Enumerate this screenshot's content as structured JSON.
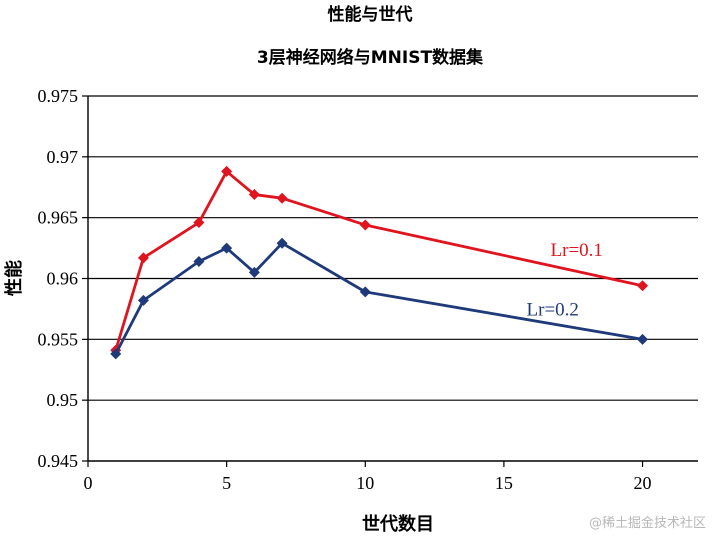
{
  "chart_data": {
    "type": "line",
    "title": "性能与世代",
    "subtitle": "3层神经网络与MNIST数据集",
    "xlabel": "世代数目",
    "ylabel": "性能",
    "xlim": [
      0,
      22
    ],
    "ylim": [
      0.945,
      0.975
    ],
    "xticks": [
      0,
      5,
      10,
      15,
      20
    ],
    "yticks": [
      0.945,
      0.95,
      0.955,
      0.96,
      0.965,
      0.97,
      0.975
    ],
    "ytick_labels": [
      "0.945",
      "0.95",
      "0.955",
      "0.96",
      "0.965",
      "0.97",
      "0.975"
    ],
    "grid": "horizontal",
    "series": [
      {
        "name": "Lr=0.1",
        "color": "#e0141e",
        "x": [
          1,
          2,
          4,
          5,
          6,
          7,
          10,
          20
        ],
        "y": [
          0.9541,
          0.9617,
          0.9646,
          0.9688,
          0.9669,
          0.9666,
          0.9644,
          0.9594
        ]
      },
      {
        "name": "Lr=0.2",
        "color": "#1f3a7a",
        "x": [
          1,
          2,
          4,
          5,
          6,
          7,
          10,
          20
        ],
        "y": [
          0.9538,
          0.9582,
          0.9614,
          0.9625,
          0.9605,
          0.9629,
          0.9589,
          0.955
        ]
      }
    ]
  },
  "watermark": "@稀土掘金技术社区"
}
